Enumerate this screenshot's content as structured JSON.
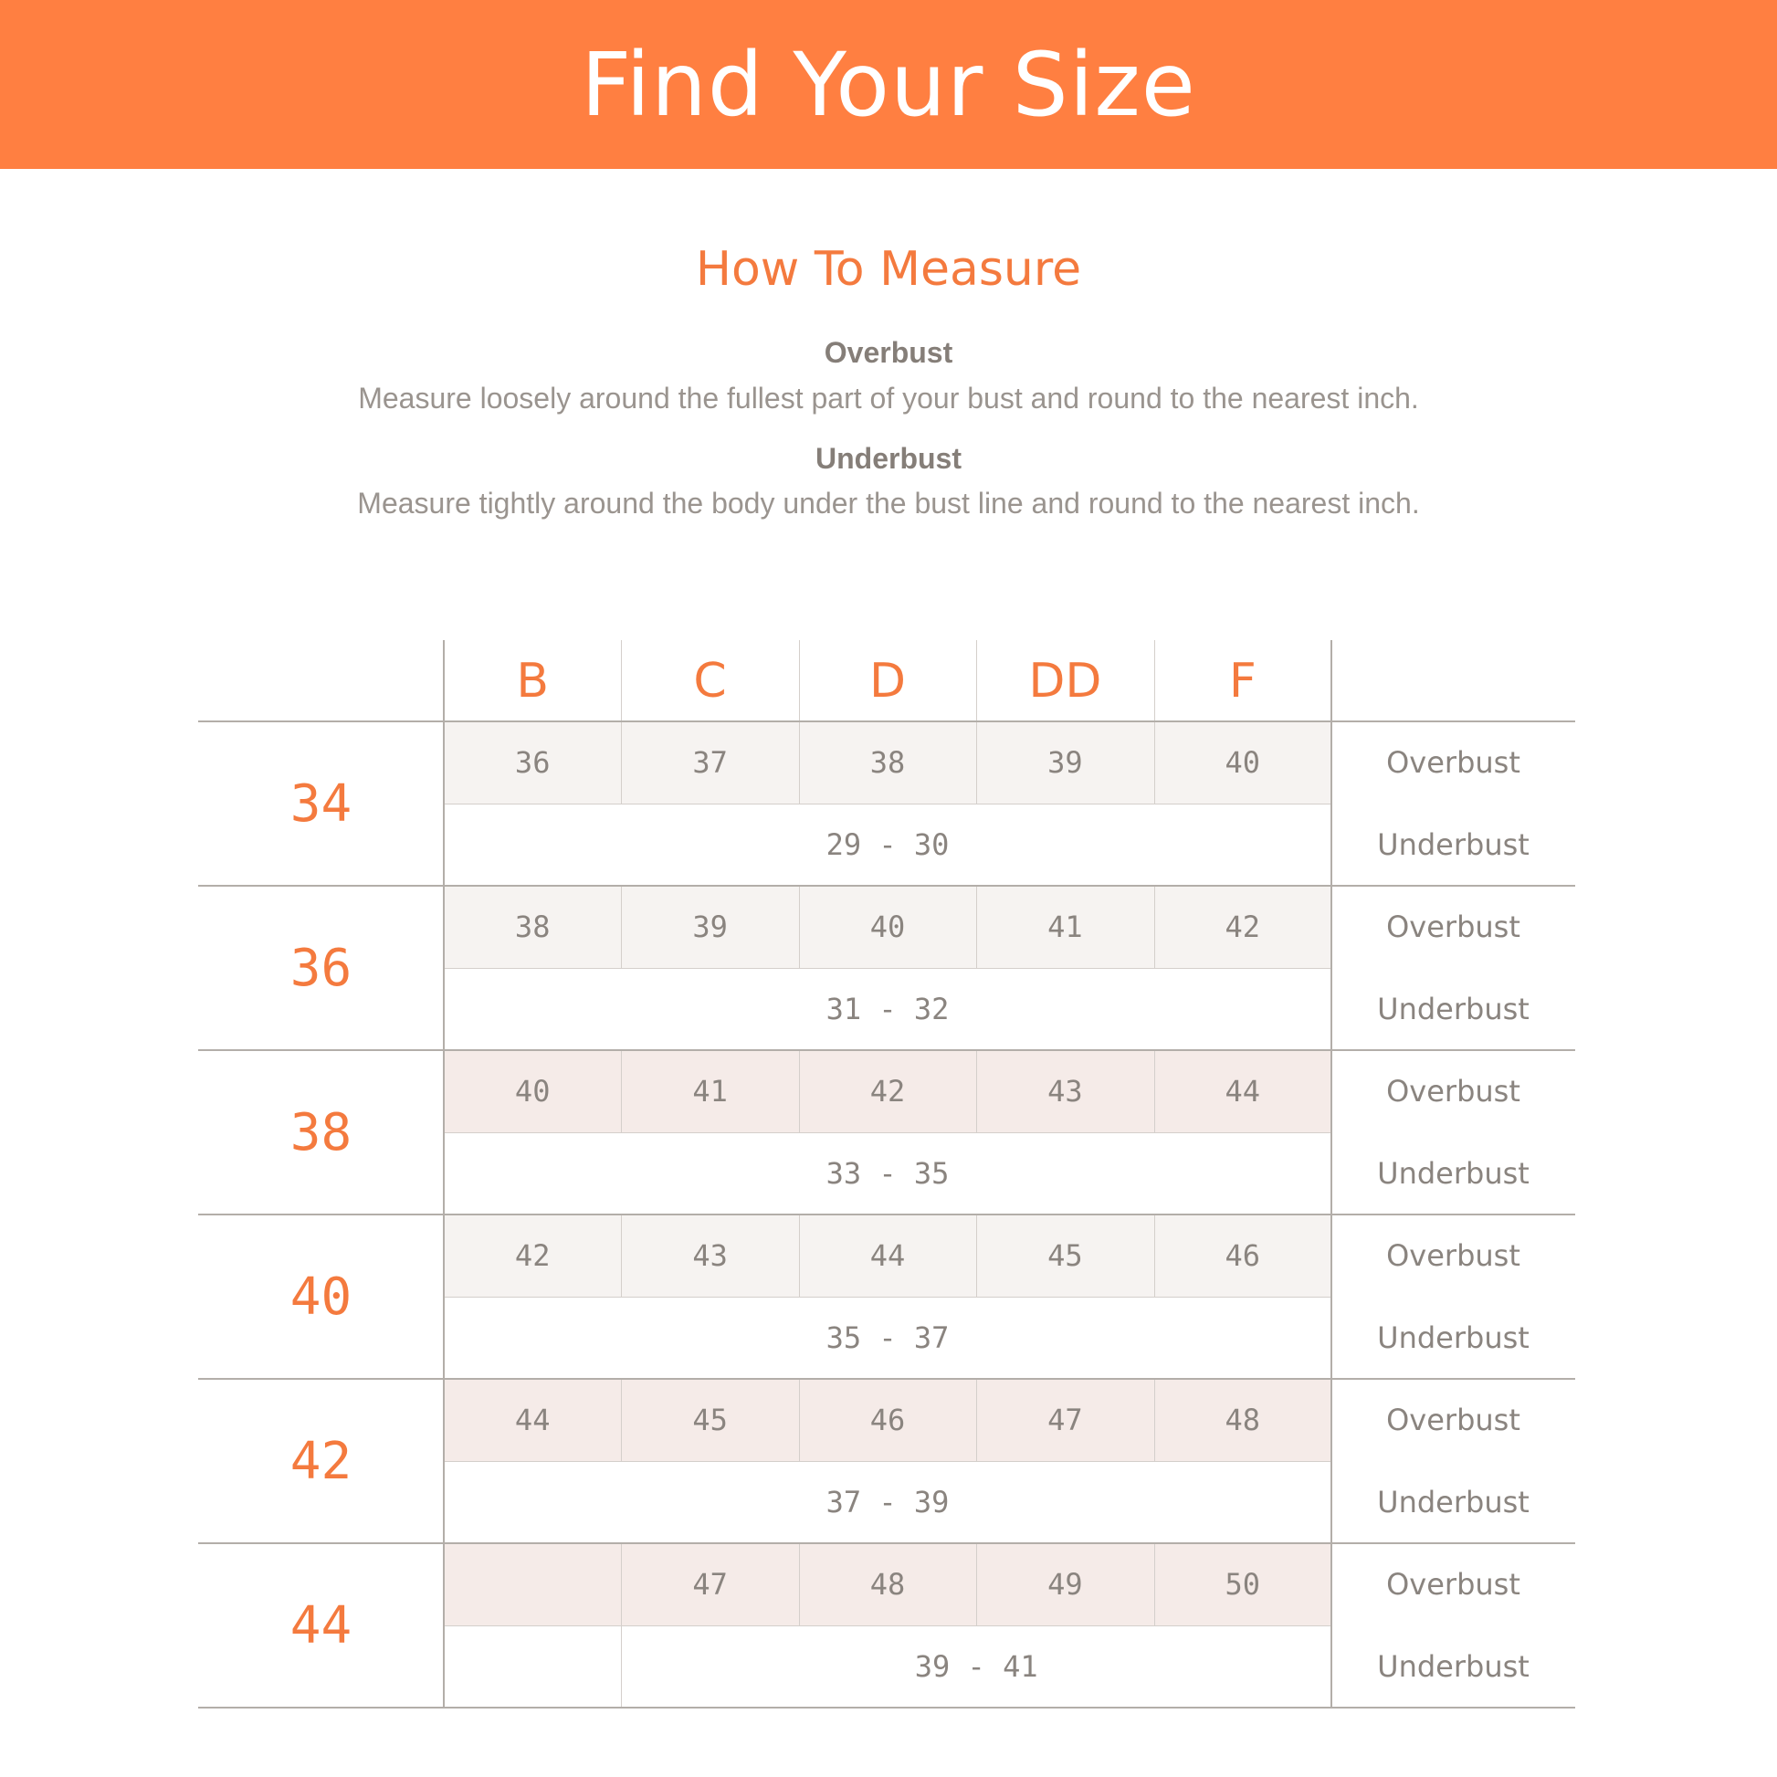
{
  "header": {
    "title": "Find Your Size"
  },
  "how_to": {
    "title": "How To Measure",
    "items": [
      {
        "term": "Overbust",
        "description": "Measure loosely around the fullest part of your bust and round to the nearest inch."
      },
      {
        "term": "Underbust",
        "description": "Measure tightly around the body under the bust line and round to the nearest inch."
      }
    ]
  },
  "table": {
    "cups": [
      "B",
      "C",
      "D",
      "DD",
      "F"
    ],
    "overbust_label": "Overbust",
    "underbust_label": "Underbust",
    "colors": {
      "accent": "#F47A3E",
      "banner": "#FF7F41",
      "row_gray": "#F6F3F1",
      "row_pink": "#F5EBE8"
    },
    "rows": [
      {
        "band": "34",
        "overbust": [
          "36",
          "37",
          "38",
          "39",
          "40"
        ],
        "underbust": "29 - 30"
      },
      {
        "band": "36",
        "overbust": [
          "38",
          "39",
          "40",
          "41",
          "42"
        ],
        "underbust": "31 - 32"
      },
      {
        "band": "38",
        "overbust": [
          "40",
          "41",
          "42",
          "43",
          "44"
        ],
        "underbust": "33 - 35"
      },
      {
        "band": "40",
        "overbust": [
          "42",
          "43",
          "44",
          "45",
          "46"
        ],
        "underbust": "35 - 37"
      },
      {
        "band": "42",
        "overbust": [
          "44",
          "45",
          "46",
          "47",
          "48"
        ],
        "underbust": "37 - 39"
      },
      {
        "band": "44",
        "overbust": [
          "",
          "47",
          "48",
          "49",
          "50"
        ],
        "underbust": "39 - 41"
      }
    ]
  }
}
